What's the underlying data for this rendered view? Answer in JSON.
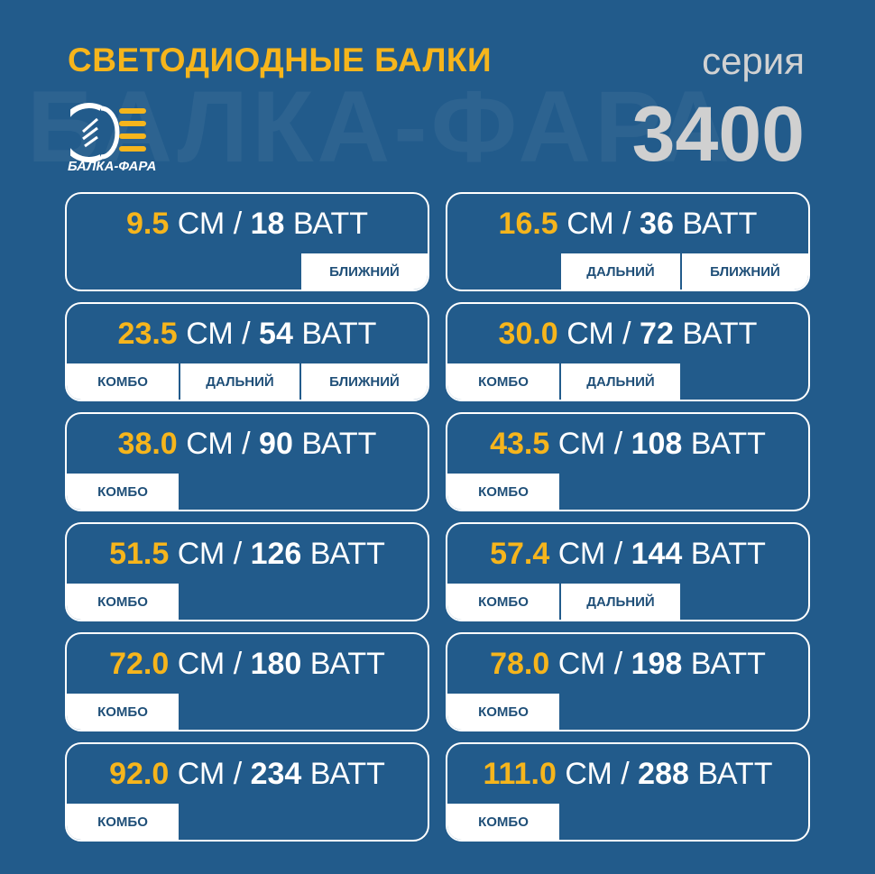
{
  "header": {
    "title": "СВЕТОДИОДНЫЕ БАЛКИ",
    "series_label": "серия",
    "series_number": "3400",
    "logo_text": "БАЛКА-ФАРА",
    "watermark": "БАЛКА-ФАРА"
  },
  "cards": [
    {
      "length": "9.5",
      "length_unit": "СМ",
      "separator": "/",
      "power": "18",
      "power_unit": "ВАТТ",
      "modes": [
        null,
        null,
        "БЛИЖНИЙ"
      ]
    },
    {
      "length": "16.5",
      "length_unit": "СМ",
      "separator": "/",
      "power": "36",
      "power_unit": "ВАТТ",
      "modes": [
        null,
        "ДАЛЬНИЙ",
        "БЛИЖНИЙ"
      ]
    },
    {
      "length": "23.5",
      "length_unit": "СМ",
      "separator": "/",
      "power": "54",
      "power_unit": "ВАТТ",
      "modes": [
        "КОМБО",
        "ДАЛЬНИЙ",
        "БЛИЖНИЙ"
      ]
    },
    {
      "length": "30.0",
      "length_unit": "СМ",
      "separator": "/",
      "power": "72",
      "power_unit": "ВАТТ",
      "modes": [
        "КОМБО",
        "ДАЛЬНИЙ",
        null
      ]
    },
    {
      "length": "38.0",
      "length_unit": "СМ",
      "separator": "/",
      "power": "90",
      "power_unit": "ВАТТ",
      "modes": [
        "КОМБО",
        null,
        null
      ]
    },
    {
      "length": "43.5",
      "length_unit": "СМ",
      "separator": "/",
      "power": "108",
      "power_unit": "ВАТТ",
      "modes": [
        "КОМБО",
        null,
        null
      ]
    },
    {
      "length": "51.5",
      "length_unit": "СМ",
      "separator": "/",
      "power": "126",
      "power_unit": "ВАТТ",
      "modes": [
        "КОМБО",
        null,
        null
      ]
    },
    {
      "length": "57.4",
      "length_unit": "СМ",
      "separator": "/",
      "power": "144",
      "power_unit": "ВАТТ",
      "modes": [
        "КОМБО",
        "ДАЛЬНИЙ",
        null
      ]
    },
    {
      "length": "72.0",
      "length_unit": "СМ",
      "separator": "/",
      "power": "180",
      "power_unit": "ВАТТ",
      "modes": [
        "КОМБО",
        null,
        null
      ]
    },
    {
      "length": "78.0",
      "length_unit": "СМ",
      "separator": "/",
      "power": "198",
      "power_unit": "ВАТТ",
      "modes": [
        "КОМБО",
        null,
        null
      ]
    },
    {
      "length": "92.0",
      "length_unit": "СМ",
      "separator": "/",
      "power": "234",
      "power_unit": "ВАТТ",
      "modes": [
        "КОМБО",
        null,
        null
      ]
    },
    {
      "length": "111.0",
      "length_unit": "СМ",
      "separator": "/",
      "power": "288",
      "power_unit": "ВАТТ",
      "modes": [
        "КОМБО",
        null,
        null
      ]
    }
  ]
}
